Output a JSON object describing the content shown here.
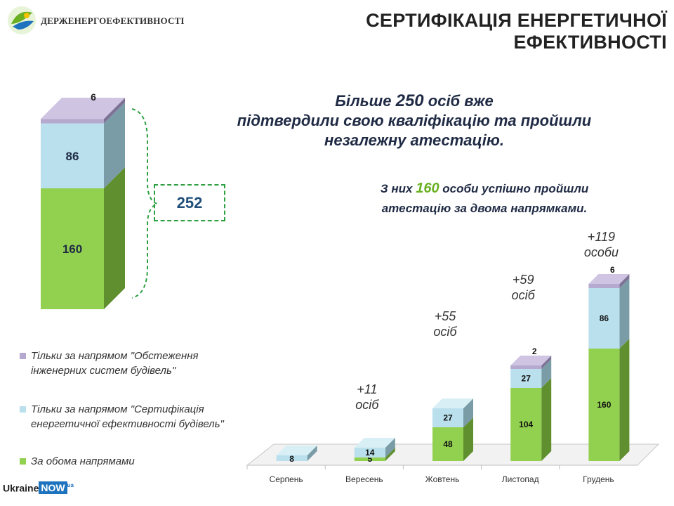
{
  "header": {
    "org_name": "ДЕРЖЕНЕРГОЕФЕКТИВНОСТІ",
    "title": "СЕРТИФІКАЦІЯ ЕНЕРГЕТИЧНОЇ ЕФЕКТИВНОСТІ"
  },
  "headline": {
    "part1": "Більше ",
    "number": "250",
    "part2": " осіб вже",
    "line2": "підтвердили свою кваліфікацію та пройшли",
    "line3": "незалежну атестацію."
  },
  "subhead": {
    "part1": "З них ",
    "number": "160",
    "part2": " особи успішно пройшли",
    "line2": "атестацію за двома напрямками."
  },
  "total": {
    "value": "252"
  },
  "legend": [
    {
      "label": "Тільки за напрямом \"Обстеження інженерних систем будівель\"",
      "color": "#b6a9cf"
    },
    {
      "label": "Тільки за напрямом \"Сертифікація енергетичної ефективності будівель\"",
      "color": "#b9e0ec"
    },
    {
      "label": "За обома напрямами",
      "color": "#92d050"
    }
  ],
  "footer": {
    "brand_part1": "Ukraine",
    "brand_part2": "NOW",
    "brand_badge": "ua"
  },
  "chart_data": [
    {
      "type": "bar",
      "stacked": true,
      "title": "",
      "series": [
        {
          "name": "За обома напрямами",
          "values": [
            160
          ]
        },
        {
          "name": "Тільки за напрямом \"Сертифікація енергетичної ефективності будівель\"",
          "values": [
            86
          ]
        },
        {
          "name": "Тільки за напрямом \"Обстеження інженерних систем будівель\"",
          "values": [
            6
          ]
        }
      ],
      "data_labels": [
        "160",
        "86",
        "6"
      ],
      "total": 252
    },
    {
      "type": "bar",
      "stacked": true,
      "categories": [
        "Серпень",
        "Вересень",
        "Жовтень",
        "Листопад",
        "Грудень"
      ],
      "series": [
        {
          "name": "За обома напрямами",
          "values": [
            0,
            5,
            48,
            104,
            160
          ]
        },
        {
          "name": "Тільки за напрямом \"Сертифікація енергетичної ефективності будівель\"",
          "values": [
            8,
            14,
            27,
            27,
            86
          ]
        },
        {
          "name": "Тільки за напрямом \"Обстеження інженерних систем будівель\"",
          "values": [
            0,
            0,
            0,
            2,
            6
          ]
        }
      ],
      "data_labels": [
        [
          "",
          "5",
          "48",
          "104",
          "160"
        ],
        [
          "8",
          "14",
          "27",
          "27",
          "86"
        ],
        [
          "",
          "",
          "",
          "2",
          "6"
        ]
      ],
      "annotations": [
        {
          "category": "Вересень",
          "line1": "+11",
          "line2": "осіб"
        },
        {
          "category": "Жовтень",
          "line1": "+55",
          "line2": "осіб"
        },
        {
          "category": "Листопад",
          "line1": "+59",
          "line2": "осіб"
        },
        {
          "category": "Грудень",
          "line1": "+119",
          "line2": "особи"
        }
      ],
      "xlabel": "",
      "ylabel": "",
      "ylim": [
        0,
        260
      ]
    }
  ]
}
